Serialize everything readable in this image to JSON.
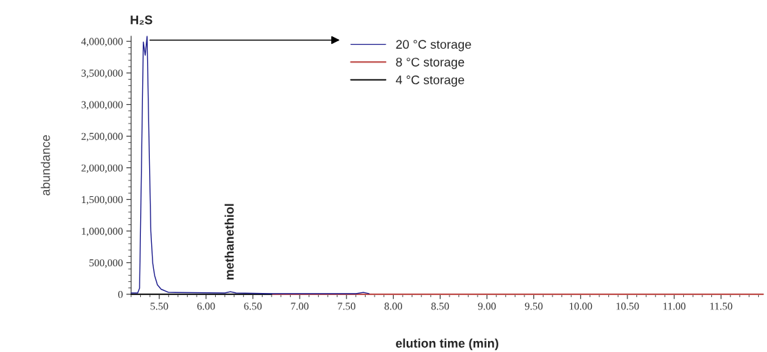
{
  "chart_data": {
    "type": "line",
    "xlabel": "elution time (min)",
    "ylabel": "abundance",
    "xlim": [
      5.2,
      11.95
    ],
    "xticks": [
      {
        "value": 5.5,
        "label": "5.50"
      },
      {
        "value": 6.0,
        "label": "6.00"
      },
      {
        "value": 6.5,
        "label": "6.50"
      },
      {
        "value": 7.0,
        "label": "7.00"
      },
      {
        "value": 7.5,
        "label": "7.50"
      },
      {
        "value": 8.0,
        "label": "8.00"
      },
      {
        "value": 8.5,
        "label": "8.50"
      },
      {
        "value": 9.0,
        "label": "9.00"
      },
      {
        "value": 9.5,
        "label": "9.50"
      },
      {
        "value": 10.0,
        "label": "10.00"
      },
      {
        "value": 10.5,
        "label": "10.50"
      },
      {
        "value": 11.0,
        "label": "11.00"
      },
      {
        "value": 11.5,
        "label": "11.50"
      }
    ],
    "ylim": [
      0,
      4080000
    ],
    "yticks": [
      0,
      {
        "value": 500000,
        "label": "500,000"
      },
      {
        "value": 1000000,
        "label": "1,000,000"
      },
      {
        "value": 1500000,
        "label": "1,500,000"
      },
      {
        "value": 2000000,
        "label": "2,000,000"
      },
      {
        "value": 2500000,
        "label": "2,500,000"
      },
      {
        "value": 3000000,
        "label": "3,000,000"
      },
      {
        "value": 3500000,
        "label": "3,500,000"
      },
      {
        "value": 4000000,
        "label": "4,000,000"
      }
    ],
    "grid": false,
    "legend": "top",
    "marker": "none",
    "line_style": "solid",
    "series": [
      {
        "name": "20 °C storage",
        "color": "#1a1a8c",
        "x": [
          5.2,
          5.27,
          5.29,
          5.31,
          5.33,
          5.35,
          5.37,
          5.39,
          5.41,
          5.43,
          5.45,
          5.48,
          5.52,
          5.6,
          6.2,
          6.26,
          6.32,
          6.7,
          7.6,
          7.68,
          7.74
        ],
        "values": [
          20000,
          20000,
          100000,
          2000000,
          3990000,
          3780000,
          4080000,
          2500000,
          1000000,
          500000,
          300000,
          150000,
          80000,
          30000,
          20000,
          40000,
          20000,
          10000,
          10000,
          30000,
          10000
        ]
      },
      {
        "name": "8 °C storage",
        "color": "#c0504d",
        "x": [
          6.7,
          11.95
        ],
        "values": [
          0,
          0
        ]
      },
      {
        "name": "4 °C storage",
        "color": "#222222",
        "x": [
          5.2,
          6.7
        ],
        "values": [
          0,
          0
        ]
      }
    ],
    "annotations": [
      {
        "text": "H₂S",
        "x": 5.37,
        "y": 4080000
      },
      {
        "text": "methanethiol",
        "x": 6.26,
        "y": 40000
      }
    ]
  }
}
